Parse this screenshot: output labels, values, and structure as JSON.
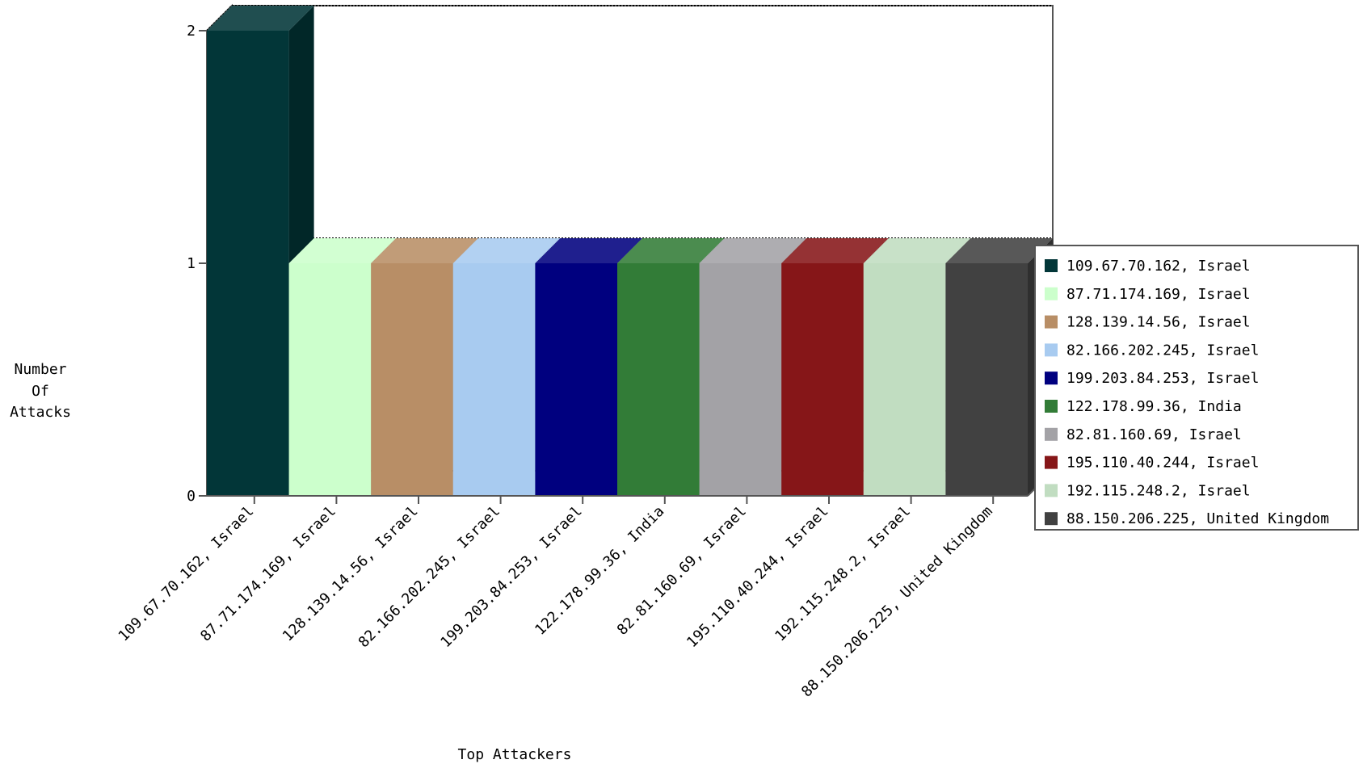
{
  "chart_data": {
    "type": "bar",
    "title": "",
    "xlabel": "Top Attackers",
    "ylabel": [
      "Number",
      "Of",
      "Attacks"
    ],
    "ylim": [
      0,
      2
    ],
    "yticks": [
      "0",
      "1",
      "2"
    ],
    "grid": true,
    "legend": "right",
    "categories": [
      "109.67.70.162, Israel",
      "87.71.174.169, Israel",
      "128.139.14.56, Israel",
      "82.166.202.245, Israel",
      "199.203.84.253, Israel",
      "122.178.99.36, India",
      "82.81.160.69, Israel",
      "195.110.40.244, Israel",
      "192.115.248.2, Israel",
      "88.150.206.225, United Kingdom"
    ],
    "values": [
      2,
      1,
      1,
      1,
      1,
      1,
      1,
      1,
      1,
      1
    ],
    "colors": [
      "#023638",
      "#ccffcc",
      "#b88e66",
      "#a8cbf0",
      "#00007f",
      "#327c37",
      "#a3a2a6",
      "#861618",
      "#c1ddc1",
      "#414141"
    ]
  }
}
